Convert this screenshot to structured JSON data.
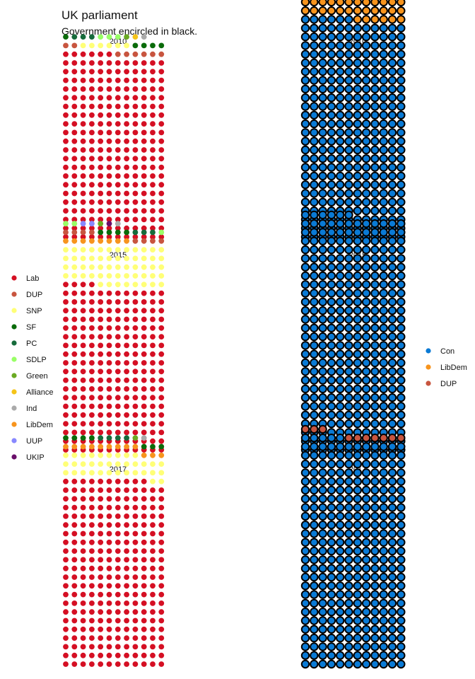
{
  "chart_data": {
    "type": "waffle",
    "title": "UK parliament",
    "subtitle": "Government encircled in black.",
    "years": [
      "2010",
      "2015",
      "2017"
    ],
    "party_colors": {
      "Lab": "#d50f23",
      "DUP": "#c8553f",
      "SNP": "#ffff77",
      "SF": "#0a6b0a",
      "PC": "#166b3b",
      "SDLP": "#99ff66",
      "Green": "#6aaa22",
      "Alliance": "#f5c418",
      "Ind": "#aaaaaa",
      "LibDem": "#f7941d",
      "UUP": "#8888ff",
      "UKIP": "#6a0f6a",
      "Con": "#0a7ad5"
    },
    "legend_left": [
      "Lab",
      "DUP",
      "SNP",
      "SF",
      "PC",
      "SDLP",
      "Green",
      "Alliance",
      "Ind",
      "LibDem",
      "UUP",
      "UKIP"
    ],
    "legend_right": [
      "Con",
      "LibDem",
      "DUP"
    ],
    "legend_placement": "left and right",
    "opposition": [
      {
        "year": "2010",
        "seats": {
          "Lab": 258,
          "DUP": 8,
          "SNP": 6,
          "SF": 5,
          "PC": 3,
          "SDLP": 3,
          "Green": 1,
          "Alliance": 1,
          "Ind": 1
        }
      },
      {
        "year": "2015",
        "seats": {
          "Lab": 232,
          "SNP": 56,
          "LibDem": 8,
          "DUP": 8,
          "SF": 4,
          "PC": 3,
          "SDLP": 3,
          "UUP": 2,
          "Green": 1,
          "UKIP": 1,
          "Ind": 1
        }
      },
      {
        "year": "2017",
        "seats": {
          "Lab": 262,
          "SNP": 35,
          "LibDem": 12,
          "SF": 7,
          "PC": 4,
          "Green": 1,
          "Ind": 1
        }
      }
    ],
    "government": [
      {
        "year": "2010",
        "seats": {
          "Con": 306,
          "LibDem": 57
        }
      },
      {
        "year": "2015",
        "seats": {
          "Con": 330
        }
      },
      {
        "year": "2017",
        "seats": {
          "Con": 317,
          "DUP": 10
        }
      }
    ]
  }
}
